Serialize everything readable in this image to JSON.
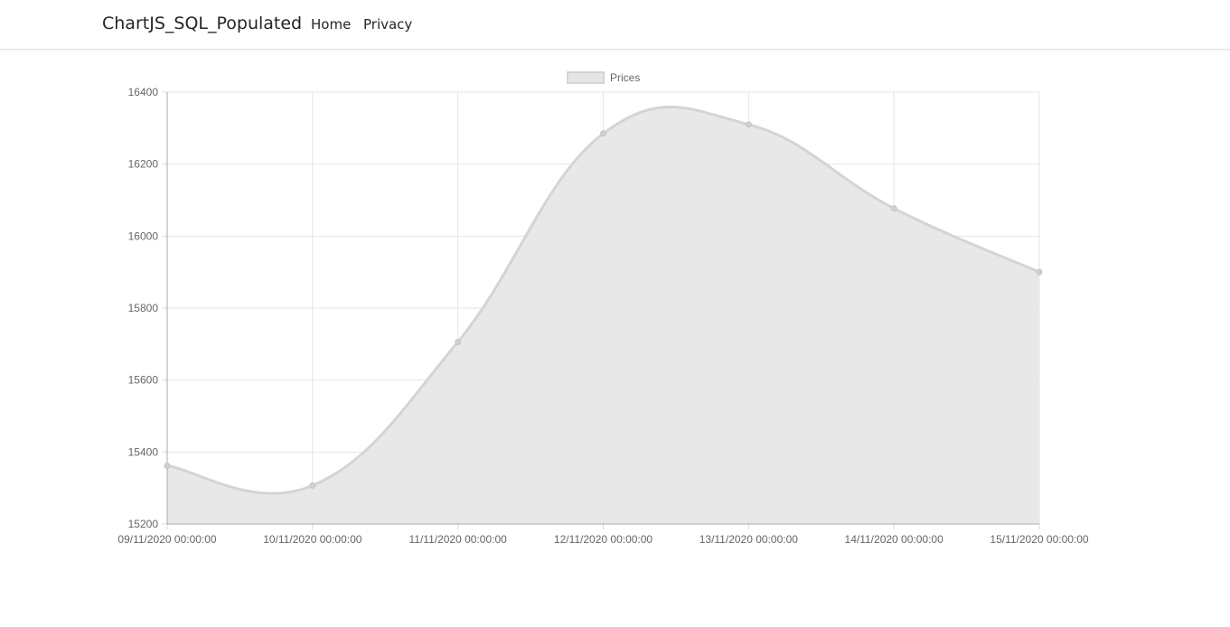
{
  "navbar": {
    "brand": "ChartJS_SQL_Populated",
    "links": [
      {
        "label": "Home"
      },
      {
        "label": "Privacy"
      }
    ]
  },
  "chart_data": {
    "type": "area",
    "categories": [
      "09/11/2020 00:00:00",
      "10/11/2020 00:00:00",
      "11/11/2020 00:00:00",
      "12/11/2020 00:00:00",
      "13/11/2020 00:00:00",
      "14/11/2020 00:00:00",
      "15/11/2020 00:00:00"
    ],
    "series": [
      {
        "name": "Prices",
        "values": [
          15362,
          15307,
          15706,
          16285,
          16310,
          16077,
          15900
        ],
        "fill_color": "#e5e5e5",
        "line_color": "#d4d4d4"
      }
    ],
    "ylim": [
      15200,
      16400
    ],
    "yticks": [
      15200,
      15400,
      15600,
      15800,
      16000,
      16200,
      16400
    ],
    "legend": "top-center",
    "grid": true,
    "smooth": true
  }
}
